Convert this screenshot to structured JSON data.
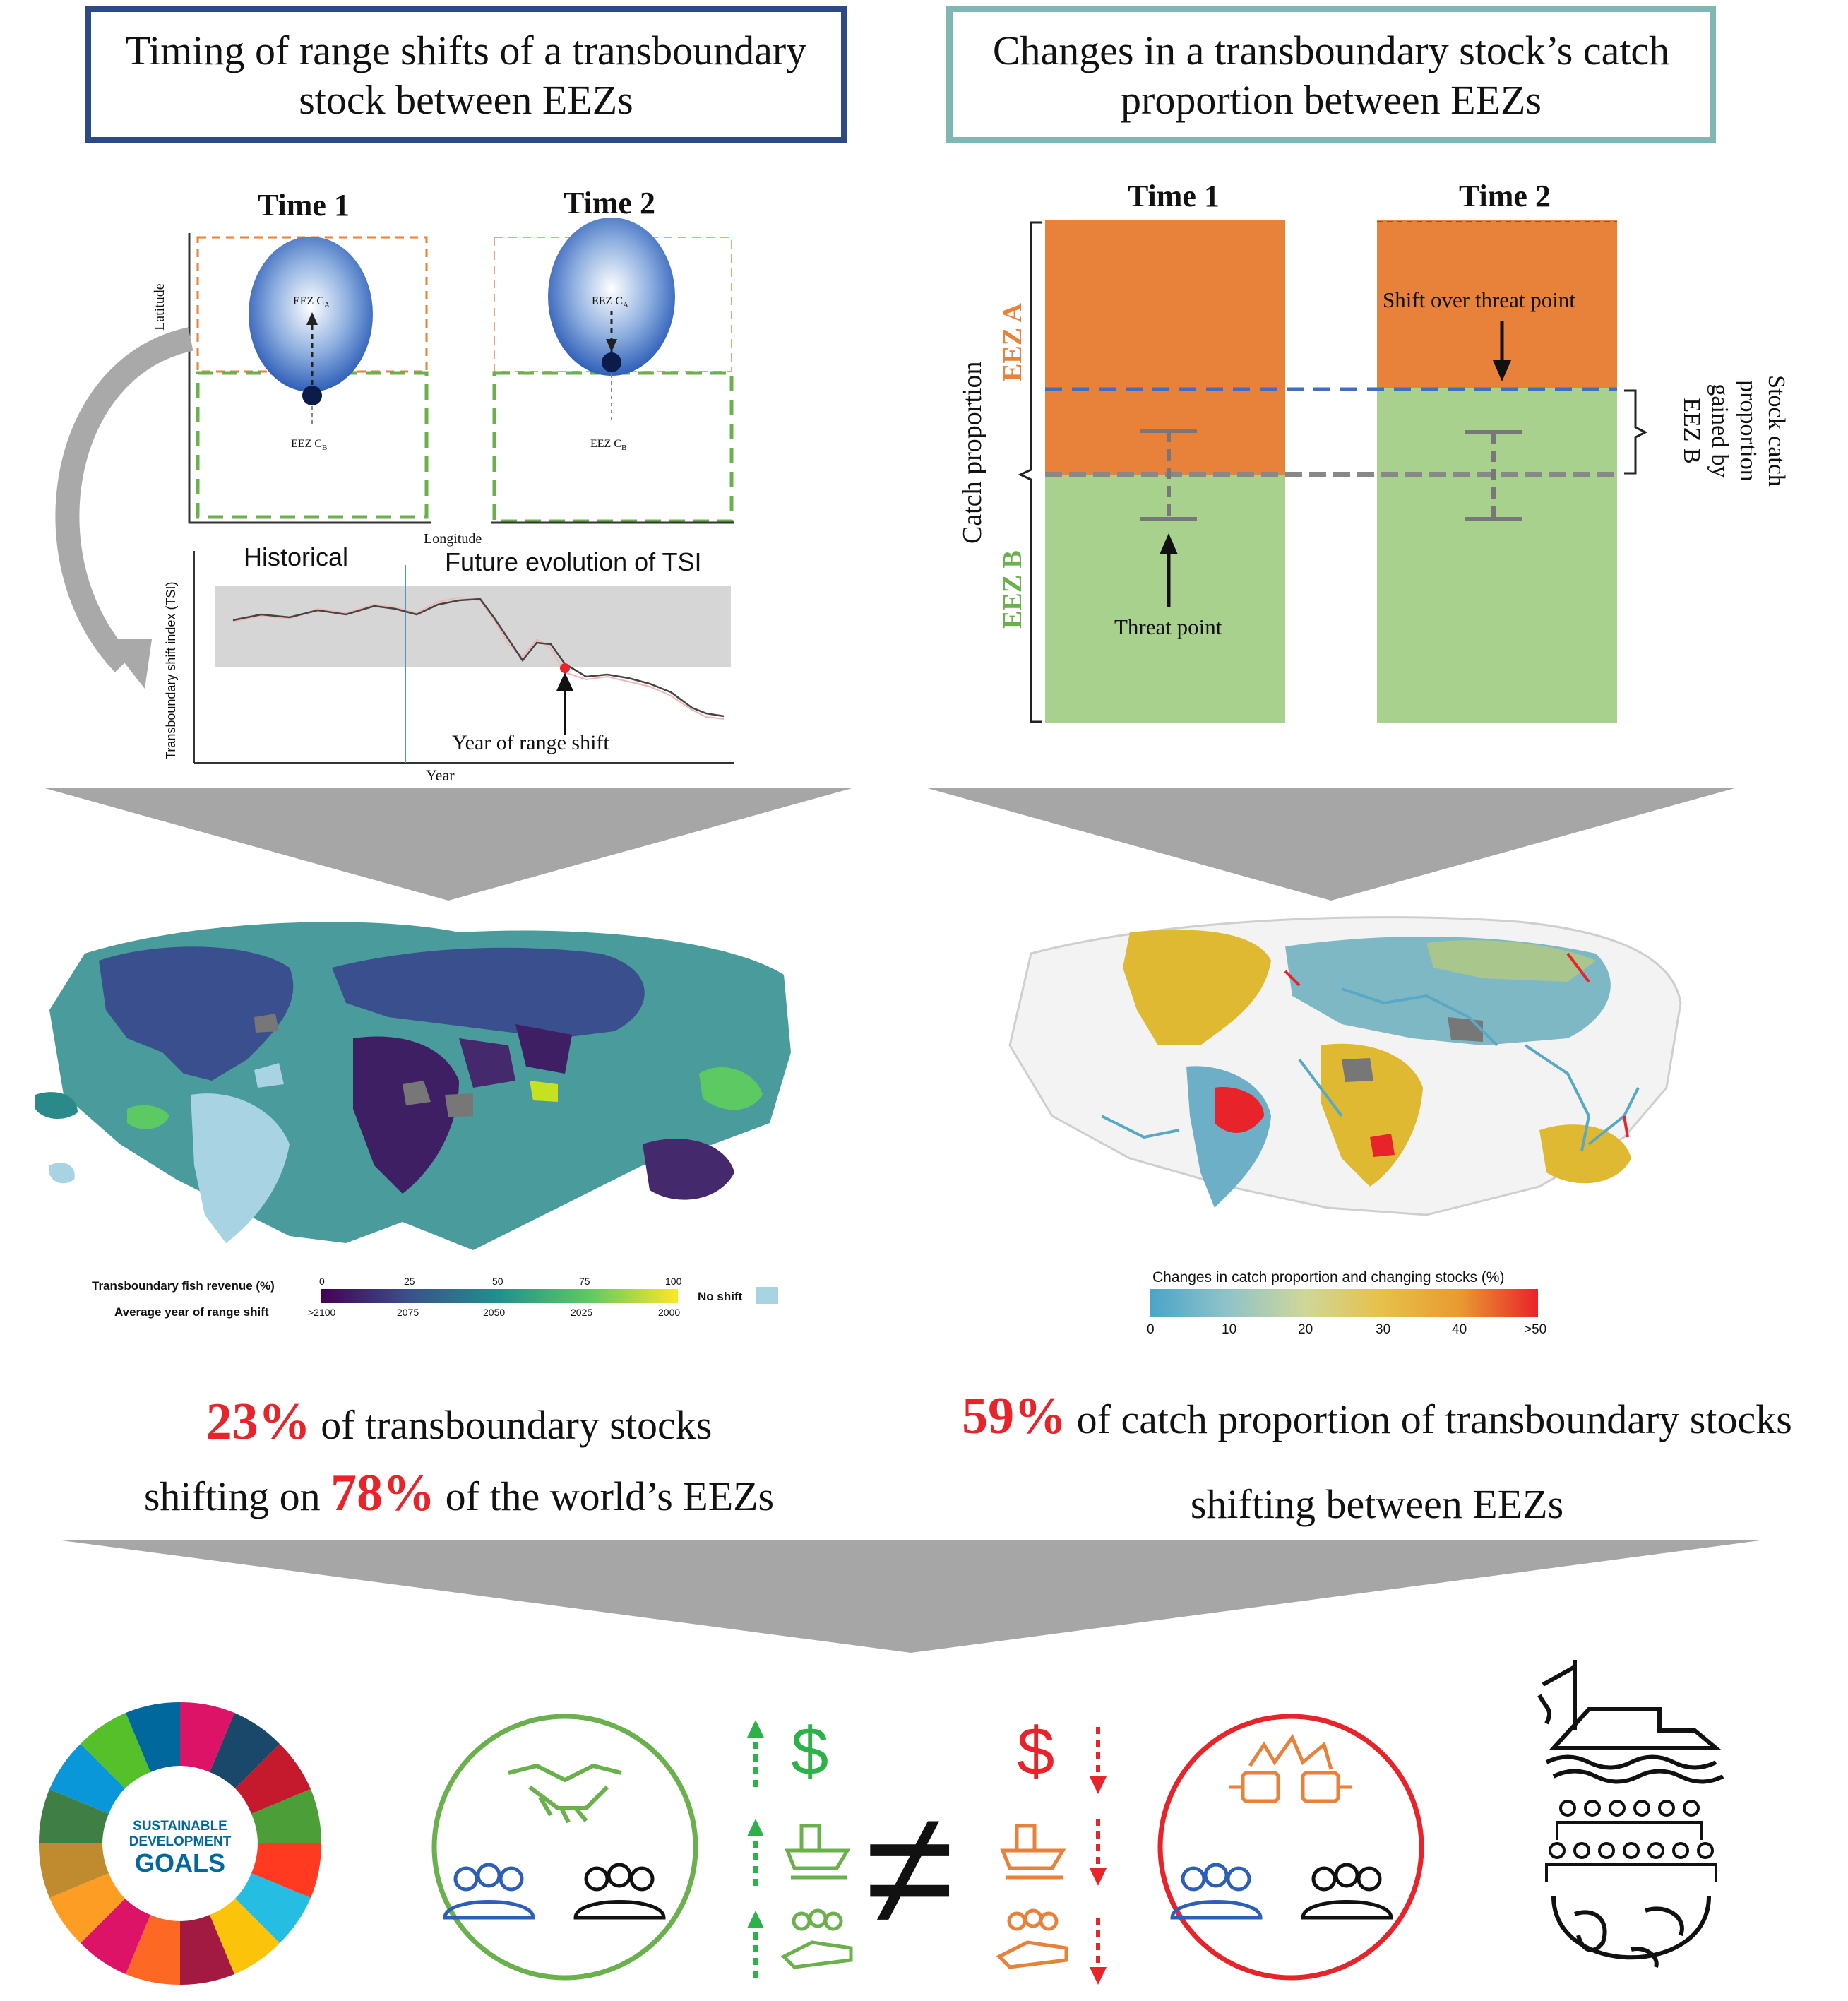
{
  "panel_left": {
    "title": "Timing of range shifts of a transboundary stock between EEZs",
    "time1": "Time 1",
    "time2": "Time 2",
    "eez_ca": "EEZ C",
    "eez_cb": "EEZ C",
    "sub_a": "A",
    "sub_b": "B",
    "y_axis": "Latitude",
    "x_axis": "Longitude",
    "tsi_historical": "Historical",
    "tsi_future": "Future evolution of TSI",
    "tsi_ylabel": "Transboundary shift index (TSI)",
    "tsi_xlabel": "Year",
    "tsi_annotation": "Year of range shift"
  },
  "panel_right": {
    "title": "Changes in a transboundary stock’s catch proportion between EEZs",
    "time1": "Time 1",
    "time2": "Time 2",
    "ylabel": "Catch proportion",
    "eez_a": "EEZ A",
    "eez_b": "EEZ B",
    "shift_label": "Shift over threat point",
    "threat_label": "Threat point",
    "gained_label": "Stock catch proportion gained by EEZ B",
    "bars": [
      {
        "time": "Time 1",
        "eez_a_share": 0.5,
        "eez_b_share": 0.5
      },
      {
        "time": "Time 2",
        "eez_a_share": 0.33,
        "eez_b_share": 0.67
      }
    ]
  },
  "map_left_legend": {
    "label1": "Transboundary fish revenue (%)",
    "label2": "Average year of range shift",
    "ticks_top": [
      "0",
      "25",
      "50",
      "75",
      "100"
    ],
    "ticks_bottom": [
      ">2100",
      "2075",
      "2050",
      "2025",
      "2000"
    ],
    "no_shift": "No shift"
  },
  "map_right_legend": {
    "label": "Changes in catch proportion and changing stocks (%)",
    "ticks": [
      "0",
      "10",
      "20",
      "30",
      "40",
      ">50"
    ]
  },
  "stat_left": {
    "pct1": "23%",
    "text1": "of transboundary stocks",
    "text2a": "shifting on",
    "pct2": "78%",
    "text2b": "of the world’s EEZs"
  },
  "stat_right": {
    "pct": "59%",
    "text1": "of catch proportion of transboundary stocks",
    "text2": "shifting between EEZs"
  },
  "sdg": {
    "line1": "SUSTAINABLE",
    "line2": "DEVELOPMENT",
    "line3": "GOALS"
  },
  "symbols": {
    "dollar": "$",
    "not_equal": "≠"
  },
  "colors": {
    "navy_border": "#2b4a86",
    "teal_border": "#7fb7b4",
    "eez_a_orange": "#e8813a",
    "eez_b_green": "#a9d18e",
    "positive_green": "#2db24a",
    "negative_red": "#e8232a",
    "stat_red": "#e8232a"
  }
}
